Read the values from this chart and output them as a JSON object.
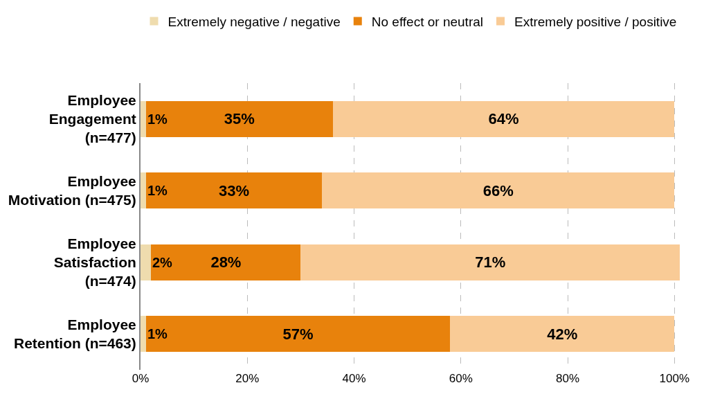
{
  "chart_data": {
    "type": "bar",
    "orientation": "horizontal",
    "stacked": true,
    "categories": [
      "Employee\nEngagement\n(n=477)",
      "Employee\nMotivation (n=475)",
      "Employee\nSatisfaction\n(n=474)",
      "Employee\nRetention (n=463)"
    ],
    "series": [
      {
        "name": "Extremely negative / negative",
        "color": "#efdcae",
        "values": [
          1,
          1,
          2,
          1
        ],
        "value_labels": [
          "1%",
          "1%",
          "2%",
          "1%"
        ]
      },
      {
        "name": "No effect or neutral",
        "color": "#e8820c",
        "values": [
          35,
          33,
          28,
          57
        ],
        "value_labels": [
          "35%",
          "33%",
          "28%",
          "57%"
        ]
      },
      {
        "name": "Extremely positive / positive",
        "color": "#f9cb96",
        "values": [
          64,
          66,
          71,
          42
        ],
        "value_labels": [
          "64%",
          "66%",
          "71%",
          "42%"
        ]
      }
    ],
    "xlim": [
      0,
      101
    ],
    "xticks": [
      {
        "value": 0,
        "label": "0%"
      },
      {
        "value": 20,
        "label": "20%"
      },
      {
        "value": 40,
        "label": "40%"
      },
      {
        "value": 60,
        "label": "60%"
      },
      {
        "value": 80,
        "label": "80%"
      },
      {
        "value": 100,
        "label": "100%"
      }
    ],
    "grid": "x",
    "legend": "top"
  }
}
